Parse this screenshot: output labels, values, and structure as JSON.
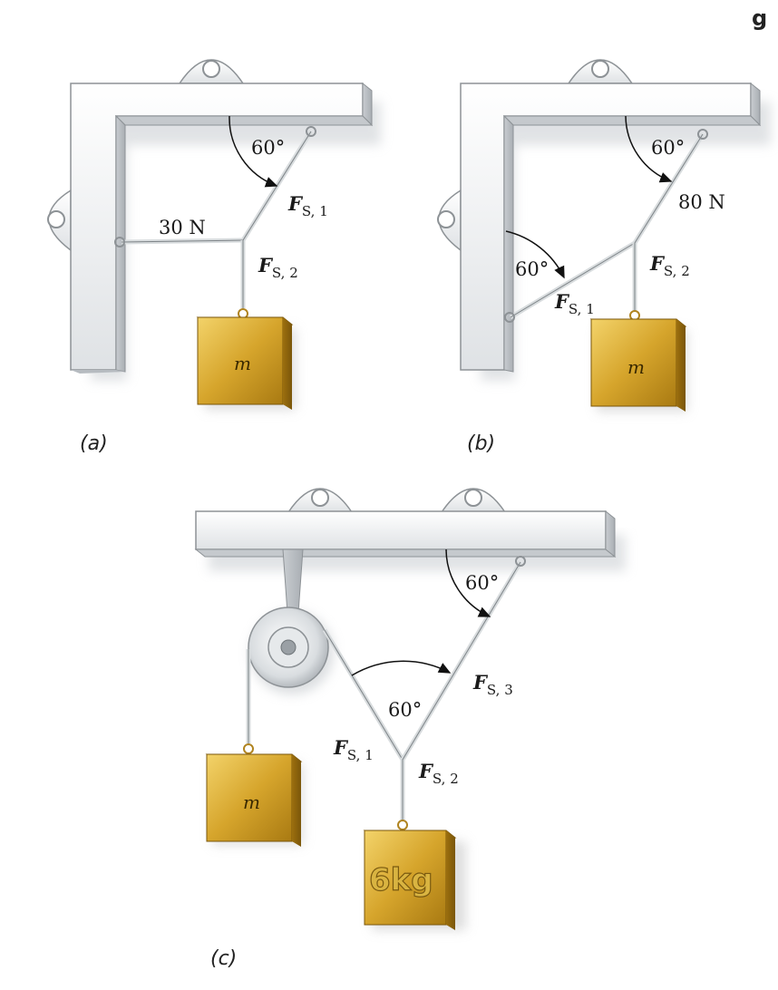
{
  "corner_mark": "g",
  "panels": {
    "a": {
      "caption": "(a)",
      "angle": "60°",
      "horizontal_force": "30 N",
      "force1": {
        "symbol": "F",
        "sub": "S, 1"
      },
      "force2": {
        "symbol": "F",
        "sub": "S, 2"
      },
      "mass": "m"
    },
    "b": {
      "caption": "(b)",
      "angle_top": "60°",
      "angle_left": "60°",
      "upper_force": "80 N",
      "force1": {
        "symbol": "F",
        "sub": "S, 1"
      },
      "force2": {
        "symbol": "F",
        "sub": "S, 2"
      },
      "mass": "m"
    },
    "c": {
      "caption": "(c)",
      "angle_top": "60°",
      "angle_mid": "60°",
      "force1": {
        "symbol": "F",
        "sub": "S, 1"
      },
      "force2": {
        "symbol": "F",
        "sub": "S, 2"
      },
      "force3": {
        "symbol": "F",
        "sub": "S, 3"
      },
      "mass": "m",
      "known_mass": "6kg"
    }
  },
  "colors": {
    "bracket": "#eef0f2",
    "bracket_edge": "#8d9296",
    "block": "#c99a22",
    "rope": "#d8dcde"
  }
}
